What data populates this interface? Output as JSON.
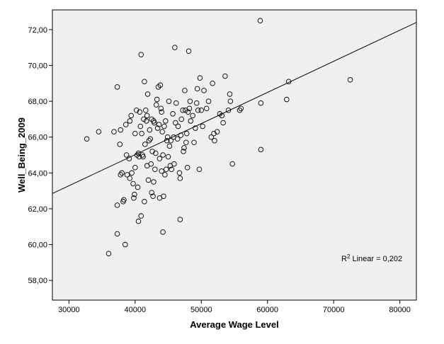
{
  "chart_data": {
    "type": "scatter",
    "xlabel": "Average Wage Level",
    "ylabel": "Well_Being_2009",
    "xlim": [
      27500,
      82500
    ],
    "ylim": [
      56.9,
      73.1
    ],
    "x_ticks": [
      30000,
      40000,
      50000,
      60000,
      70000,
      80000
    ],
    "x_tick_labels": [
      "30000",
      "40000",
      "50000",
      "60000",
      "70000",
      "80000"
    ],
    "y_ticks": [
      58,
      60,
      62,
      64,
      66,
      68,
      70,
      72
    ],
    "y_tick_labels": [
      "58,00",
      "60,00",
      "62,00",
      "64,00",
      "66,00",
      "68,00",
      "70,00",
      "72,00"
    ],
    "grid": false,
    "background_color": "#f0f0f0",
    "marker": "open-circle",
    "fit_line": {
      "type": "linear",
      "x0": 27500,
      "y0": 62.85,
      "x1": 82500,
      "y1": 72.4
    },
    "annotation": {
      "prefix": "R",
      "sup": "2",
      "text": " Linear = 0,202"
    },
    "points": [
      [
        32700,
        65.9
      ],
      [
        34500,
        66.3
      ],
      [
        36000,
        59.5
      ],
      [
        36800,
        66.3
      ],
      [
        37300,
        68.8
      ],
      [
        37300,
        62.2
      ],
      [
        37300,
        60.6
      ],
      [
        37800,
        66.4
      ],
      [
        37700,
        65.6
      ],
      [
        37800,
        63.9
      ],
      [
        38000,
        64.0
      ],
      [
        38300,
        62.5
      ],
      [
        38200,
        62.4
      ],
      [
        38500,
        60.0
      ],
      [
        38600,
        66.7
      ],
      [
        38700,
        65.0
      ],
      [
        38800,
        63.9
      ],
      [
        39100,
        64.8
      ],
      [
        39200,
        66.9
      ],
      [
        39200,
        63.7
      ],
      [
        39400,
        67.2
      ],
      [
        39500,
        64.0
      ],
      [
        39700,
        63.4
      ],
      [
        39800,
        62.6
      ],
      [
        39900,
        62.8
      ],
      [
        40000,
        64.3
      ],
      [
        40000,
        66.2
      ],
      [
        40200,
        67.5
      ],
      [
        40300,
        65.0
      ],
      [
        40400,
        63.2
      ],
      [
        40500,
        65.1
      ],
      [
        40500,
        61.3
      ],
      [
        40600,
        64.9
      ],
      [
        40700,
        67.4
      ],
      [
        40800,
        66.6
      ],
      [
        40900,
        70.6
      ],
      [
        40900,
        61.6
      ],
      [
        41000,
        66.2
      ],
      [
        41100,
        65.0
      ],
      [
        41200,
        64.9
      ],
      [
        41300,
        67.0
      ],
      [
        41400,
        69.1
      ],
      [
        41400,
        62.4
      ],
      [
        41500,
        65.6
      ],
      [
        41600,
        67.5
      ],
      [
        41700,
        66.9
      ],
      [
        41800,
        64.4
      ],
      [
        41800,
        67.2
      ],
      [
        41900,
        68.4
      ],
      [
        42000,
        63.6
      ],
      [
        42100,
        65.8
      ],
      [
        42200,
        66.4
      ],
      [
        42300,
        65.9
      ],
      [
        42400,
        64.5
      ],
      [
        42500,
        67.0
      ],
      [
        42500,
        62.9
      ],
      [
        42600,
        65.2
      ],
      [
        42700,
        62.7
      ],
      [
        42800,
        63.5
      ],
      [
        42800,
        66.9
      ],
      [
        42900,
        66.8
      ],
      [
        43000,
        64.2
      ],
      [
        43100,
        65.1
      ],
      [
        43200,
        67.8
      ],
      [
        43300,
        68.1
      ],
      [
        43400,
        66.5
      ],
      [
        43500,
        68.8
      ],
      [
        43600,
        66.7
      ],
      [
        43700,
        64.8
      ],
      [
        43700,
        62.6
      ],
      [
        43800,
        68.9
      ],
      [
        43900,
        67.6
      ],
      [
        44000,
        64.1
      ],
      [
        44000,
        67.4
      ],
      [
        44100,
        66.3
      ],
      [
        44200,
        65.0
      ],
      [
        44300,
        62.7
      ],
      [
        44200,
        60.7
      ],
      [
        44400,
        66.6
      ],
      [
        44500,
        63.9
      ],
      [
        44600,
        66.9
      ],
      [
        44700,
        64.2
      ],
      [
        44800,
        65.8
      ],
      [
        44900,
        66.0
      ],
      [
        45000,
        64.9
      ],
      [
        45100,
        68.0
      ],
      [
        45200,
        65.5
      ],
      [
        45300,
        64.4
      ],
      [
        45400,
        65.8
      ],
      [
        45500,
        64.2
      ],
      [
        45700,
        67.3
      ],
      [
        45800,
        66.0
      ],
      [
        45900,
        64.5
      ],
      [
        46000,
        71.0
      ],
      [
        46100,
        66.8
      ],
      [
        46200,
        67.9
      ],
      [
        46400,
        65.9
      ],
      [
        46500,
        66.6
      ],
      [
        46700,
        64.0
      ],
      [
        46800,
        63.7
      ],
      [
        46800,
        61.4
      ],
      [
        46900,
        66.1
      ],
      [
        47000,
        67.0
      ],
      [
        47200,
        67.5
      ],
      [
        47300,
        65.2
      ],
      [
        47400,
        65.4
      ],
      [
        47500,
        68.6
      ],
      [
        47600,
        67.5
      ],
      [
        47700,
        65.7
      ],
      [
        47800,
        66.2
      ],
      [
        47900,
        64.3
      ],
      [
        48000,
        67.4
      ],
      [
        48100,
        70.8
      ],
      [
        48200,
        67.6
      ],
      [
        48300,
        68.0
      ],
      [
        48400,
        66.9
      ],
      [
        48700,
        67.2
      ],
      [
        48900,
        65.7
      ],
      [
        49100,
        66.5
      ],
      [
        49300,
        67.9
      ],
      [
        49400,
        68.7
      ],
      [
        49500,
        67.5
      ],
      [
        49700,
        64.2
      ],
      [
        49800,
        69.3
      ],
      [
        50000,
        67.5
      ],
      [
        50200,
        66.6
      ],
      [
        50400,
        68.6
      ],
      [
        50800,
        67.6
      ],
      [
        51100,
        68.0
      ],
      [
        51500,
        66.0
      ],
      [
        51700,
        69.0
      ],
      [
        51900,
        66.2
      ],
      [
        52000,
        65.8
      ],
      [
        52400,
        66.3
      ],
      [
        52800,
        67.3
      ],
      [
        53100,
        67.2
      ],
      [
        53300,
        66.8
      ],
      [
        53600,
        69.4
      ],
      [
        54100,
        67.5
      ],
      [
        54300,
        68.4
      ],
      [
        54400,
        68.0
      ],
      [
        54700,
        64.5
      ],
      [
        55800,
        67.5
      ],
      [
        56000,
        67.6
      ],
      [
        58900,
        72.5
      ],
      [
        59000,
        67.9
      ],
      [
        59000,
        65.3
      ],
      [
        62900,
        68.1
      ],
      [
        63200,
        69.1
      ],
      [
        72500,
        69.2
      ]
    ]
  }
}
